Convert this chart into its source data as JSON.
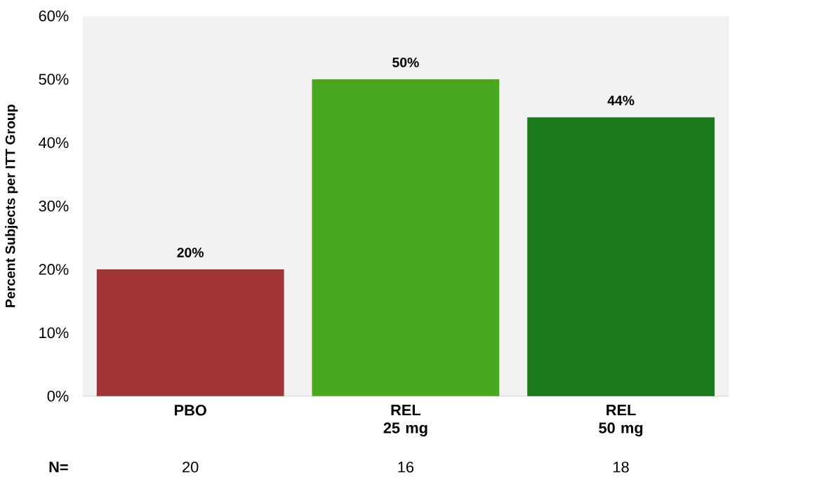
{
  "chart_data": {
    "type": "bar",
    "ylabel": "Percent Subjects per ITT Group",
    "categories": [
      "PBO",
      "REL 25 mg",
      "REL 50 mg"
    ],
    "values": [
      20,
      50,
      44
    ],
    "colors": [
      "#a13434",
      "#4aa81f",
      "#1b7a1b"
    ],
    "value_labels": [
      "20%",
      "50%",
      "44%"
    ],
    "ylim": [
      0,
      60
    ],
    "yticks": [
      {
        "value": 0,
        "label": "0%"
      },
      {
        "value": 10,
        "label": "10%"
      },
      {
        "value": 20,
        "label": "20%"
      },
      {
        "value": 30,
        "label": "30%"
      },
      {
        "value": 40,
        "label": "40%"
      },
      {
        "value": 50,
        "label": "50%"
      },
      {
        "value": 60,
        "label": "60%"
      }
    ],
    "annotations": [
      "N=",
      "20",
      "16",
      "18"
    ]
  }
}
